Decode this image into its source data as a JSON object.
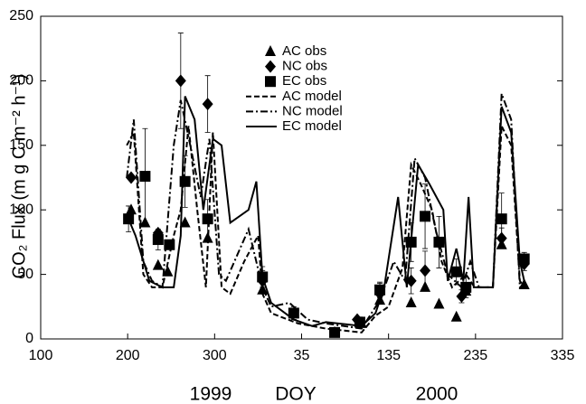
{
  "chart_data": {
    "type": "scatter-line",
    "y_label": "CO₂ Flux (m g C m⁻² h⁻¹)",
    "x_label": "DOY",
    "annotations": [
      "1999",
      "2000"
    ],
    "xlim": [
      100,
      700
    ],
    "xticks": [
      100,
      200,
      300,
      {
        "value": 400,
        "label": "35"
      },
      {
        "value": 500,
        "label": "135"
      },
      {
        "value": 600,
        "label": "235"
      },
      {
        "value": 700,
        "label": "335"
      }
    ],
    "ylim": [
      0,
      250
    ],
    "yticks": [
      0,
      50,
      100,
      150,
      200,
      250
    ],
    "series": [
      {
        "name": "AC obs",
        "color": "#000000",
        "marker": "triangle",
        "x": [
          204,
          220,
          235,
          246,
          266,
          292,
          355,
          391,
          438,
          469,
          490,
          526,
          542,
          558,
          578,
          589,
          630,
          656
        ],
        "values": [
          100,
          90,
          57,
          52,
          90,
          78,
          38,
          20,
          5,
          12,
          30,
          28,
          40,
          27,
          17,
          37,
          73,
          42
        ]
      },
      {
        "name": "NC obs",
        "color": "#000000",
        "marker": "diamond",
        "x": [
          204,
          235,
          261,
          292,
          355,
          464,
          490,
          526,
          542,
          584,
          630,
          656
        ],
        "values": [
          125,
          82,
          200,
          182,
          45,
          15,
          35,
          45,
          53,
          33,
          78,
          58
        ],
        "errors": [
          null,
          null,
          37,
          22,
          8,
          null,
          8,
          10,
          15,
          5,
          8,
          5
        ]
      },
      {
        "name": "EC obs",
        "color": "#000000",
        "marker": "square",
        "x": [
          201,
          220,
          235,
          248,
          266,
          292,
          355,
          391,
          438,
          467,
          490,
          526,
          542,
          558,
          578,
          589,
          630,
          656
        ],
        "values": [
          93,
          126,
          77,
          73,
          122,
          93,
          48,
          20,
          5,
          13,
          38,
          75,
          95,
          75,
          52,
          40,
          93,
          62
        ],
        "errors": [
          10,
          37,
          8,
          null,
          20,
          15,
          8,
          5,
          null,
          4,
          6,
          15,
          25,
          20,
          10,
          8,
          20,
          5
        ]
      },
      {
        "name": "AC model",
        "color": "#000000",
        "dash": "dashed",
        "x": [
          199,
          207,
          218,
          228,
          240,
          253,
          261,
          270,
          280,
          290,
          298,
          308,
          318,
          334,
          350,
          355,
          365,
          396,
          428,
          469,
          485,
          500,
          516,
          526,
          537,
          550,
          561,
          573,
          589,
          599,
          620,
          630,
          641,
          651,
          656
        ],
        "values": [
          150,
          160,
          50,
          40,
          40,
          80,
          100,
          165,
          100,
          40,
          160,
          40,
          35,
          60,
          80,
          35,
          20,
          12,
          8,
          5,
          18,
          25,
          55,
          135,
          120,
          100,
          60,
          40,
          50,
          40,
          40,
          165,
          150,
          45,
          40
        ]
      },
      {
        "name": "NC model",
        "color": "#000000",
        "dash": "dashdot",
        "x": [
          199,
          207,
          218,
          228,
          240,
          253,
          261,
          272,
          284,
          294,
          305,
          313,
          339,
          355,
          365,
          386,
          407,
          428,
          469,
          490,
          506,
          519,
          530,
          542,
          554,
          568,
          584,
          594,
          604,
          620,
          630,
          641,
          651,
          656
        ],
        "values": [
          125,
          170,
          60,
          45,
          40,
          150,
          185,
          150,
          110,
          155,
          50,
          45,
          85,
          40,
          25,
          28,
          15,
          12,
          8,
          30,
          60,
          45,
          140,
          125,
          85,
          50,
          40,
          60,
          40,
          40,
          190,
          170,
          40,
          42
        ]
      },
      {
        "name": "EC model",
        "color": "#000000",
        "dash": "solid",
        "x": [
          201,
          209,
          225,
          240,
          253,
          261,
          266,
          277,
          287,
          298,
          308,
          318,
          339,
          348,
          355,
          365,
          391,
          412,
          428,
          469,
          485,
          495,
          511,
          521,
          534,
          547,
          563,
          568,
          578,
          586,
          592,
          598,
          620,
          630,
          641,
          651,
          656
        ],
        "values": [
          93,
          80,
          45,
          40,
          40,
          80,
          188,
          170,
          100,
          155,
          150,
          90,
          100,
          122,
          48,
          28,
          15,
          10,
          13,
          10,
          20,
          40,
          110,
          40,
          135,
          120,
          100,
          45,
          70,
          45,
          110,
          40,
          40,
          180,
          160,
          60,
          45
        ]
      }
    ]
  }
}
